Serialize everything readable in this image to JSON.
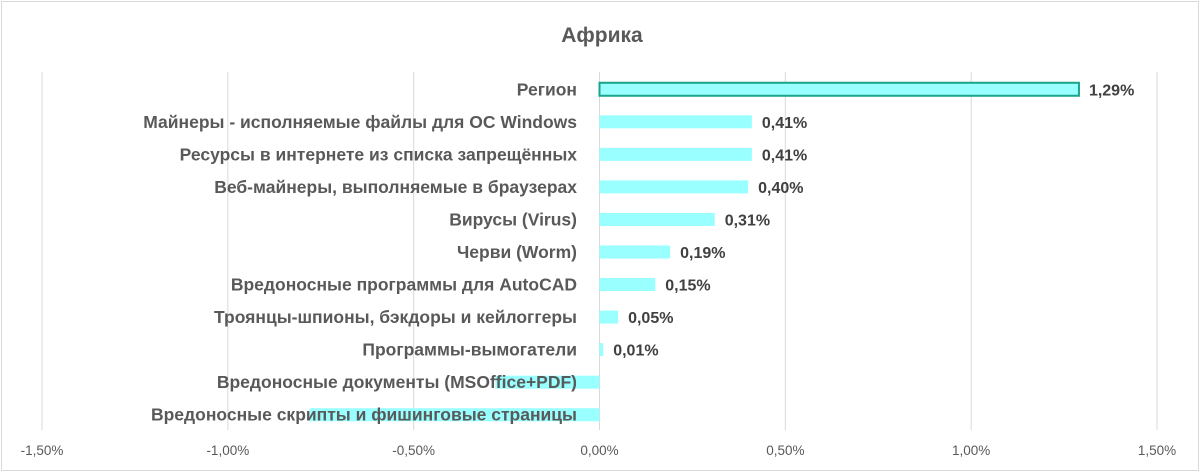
{
  "chart_data": {
    "type": "bar",
    "orientation": "horizontal",
    "title": "Африка",
    "xlabel": "",
    "ylabel": "",
    "xlim": [
      -0.015,
      0.015
    ],
    "x_ticks": [
      "-1,50%",
      "-1,00%",
      "-0,50%",
      "0,00%",
      "0,50%",
      "1,00%",
      "1,50%"
    ],
    "x_tick_values": [
      -0.015,
      -0.01,
      -0.005,
      0,
      0.005,
      0.01,
      0.015
    ],
    "grid": true,
    "legend": "none",
    "categories": [
      "Регион",
      "Майнеры - исполняемые файлы для ОС Windows",
      "Ресурсы в интернете из списка запрещённых",
      "Веб-майнеры, выполняемые в браузерах",
      "Вирусы (Virus)",
      "Черви (Worm)",
      "Вредоносные программы для AutoCAD",
      "Троянцы-шпионы, бэкдоры и кейлоггеры",
      "Программы-вымогатели",
      "Вредоносные документы (MSOffice+PDF)",
      "Вредоносные скрипты и фишинговые страницы"
    ],
    "values": [
      0.0129,
      0.0041,
      0.0041,
      0.004,
      0.0031,
      0.0019,
      0.0015,
      0.0005,
      0.0001,
      -0.0028,
      -0.0078
    ],
    "data_labels": [
      "1,29%",
      "0,41%",
      "0,41%",
      "0,40%",
      "0,31%",
      "0,19%",
      "0,15%",
      "0,05%",
      "0,01%",
      null,
      null
    ],
    "colors": {
      "bar": "#99ffff",
      "highlight_border": "#1aa58a",
      "grid": "#d9d9d9",
      "text": "#595959"
    }
  }
}
